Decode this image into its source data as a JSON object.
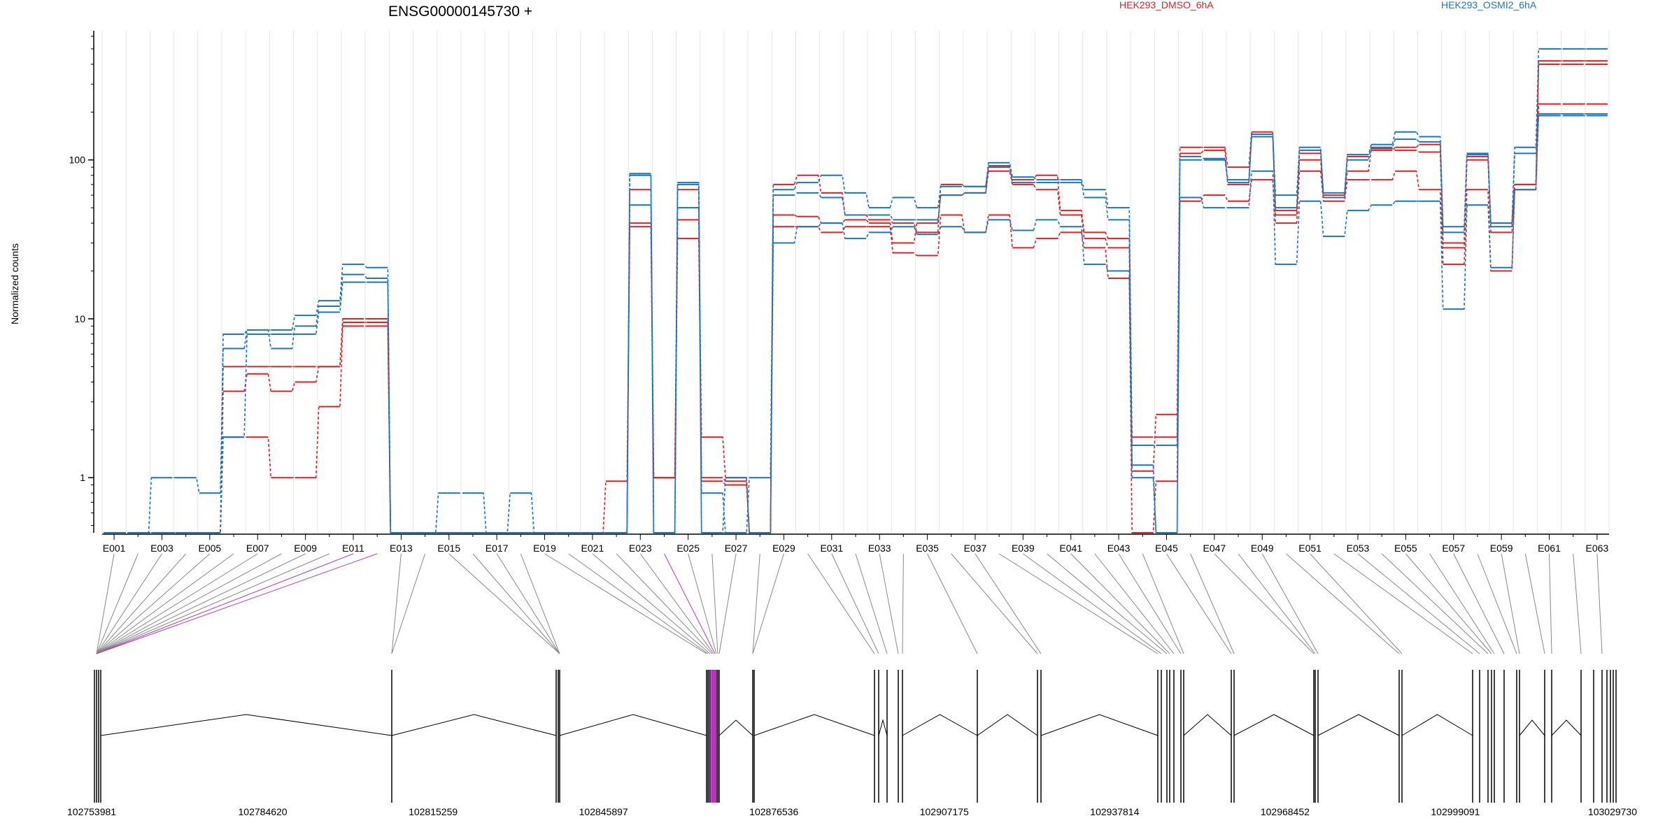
{
  "chart_data": {
    "type": "line",
    "title": "ENSG00000145730 +",
    "ylabel": "Normalized counts",
    "xlabel": "",
    "y_scale": "log",
    "ylim": [
      0.45,
      650
    ],
    "y_ticks": [
      {
        "value": 1,
        "label": "1"
      },
      {
        "value": 10,
        "label": "10"
      },
      {
        "value": 100,
        "label": "100"
      }
    ],
    "grid": true,
    "legend_placement": "top",
    "exon_tick_labels": [
      "E001",
      "E003",
      "E005",
      "E007",
      "E009",
      "E011",
      "E013",
      "E015",
      "E017",
      "E019",
      "E021",
      "E023",
      "E025",
      "E027",
      "E029",
      "E031",
      "E033",
      "E035",
      "E037",
      "E039",
      "E041",
      "E043",
      "E045",
      "E047",
      "E049",
      "E051",
      "E053",
      "E055",
      "E057",
      "E059",
      "E061",
      "E063"
    ],
    "genomic_tick_labels": [
      "102753981",
      "102784620",
      "102815259",
      "102845897",
      "102876536",
      "102907175",
      "102937814",
      "102968452",
      "102999091",
      "103029730"
    ],
    "series": [
      {
        "name": "HEK293_DMSO_6hA",
        "color": "#d62728",
        "values": [
          0.45,
          0.45,
          0.45,
          0.45,
          0.45,
          5,
          5,
          5,
          5,
          5,
          9.5,
          9.5,
          0.45,
          0.45,
          0.45,
          0.45,
          0.45,
          0.45,
          0.45,
          0.45,
          0.45,
          0.95,
          40,
          1,
          42,
          1.8,
          1,
          0.45,
          70,
          80,
          62,
          45,
          42,
          40,
          35,
          70,
          68,
          90,
          75,
          80,
          48,
          35,
          32,
          1.8,
          1.8,
          120,
          120,
          90,
          150,
          48,
          110,
          60,
          105,
          118,
          115,
          112,
          30,
          105,
          40,
          70,
          420,
          420,
          420
        ]
      },
      {
        "name": "",
        "color": "#d62728",
        "values": [
          0.45,
          0.45,
          0.45,
          0.45,
          0.45,
          3.5,
          4.5,
          3.5,
          4,
          5,
          10,
          10,
          0.45,
          0.45,
          0.45,
          0.45,
          0.45,
          0.45,
          0.45,
          0.45,
          0.45,
          0.45,
          65,
          1,
          65,
          1,
          0.95,
          0.45,
          45,
          44,
          40,
          42,
          40,
          30,
          40,
          60,
          62,
          85,
          70,
          65,
          45,
          32,
          28,
          1.1,
          2.5,
          110,
          115,
          70,
          140,
          45,
          100,
          58,
          85,
          115,
          120,
          125,
          28,
          100,
          35,
          65,
          400,
          400,
          400
        ]
      },
      {
        "name": "",
        "color": "#d62728",
        "values": [
          0.45,
          0.45,
          0.45,
          0.45,
          0.45,
          1.8,
          1.8,
          1,
          1,
          2.8,
          9,
          9,
          0.45,
          0.45,
          0.45,
          0.45,
          0.45,
          0.45,
          0.45,
          0.45,
          0.45,
          0.45,
          38,
          1,
          32,
          0.95,
          0.9,
          0.45,
          38,
          38,
          35,
          38,
          38,
          26,
          25,
          45,
          35,
          45,
          28,
          32,
          35,
          28,
          18,
          0.45,
          0.95,
          55,
          60,
          55,
          75,
          40,
          85,
          55,
          75,
          75,
          85,
          65,
          22,
          65,
          20,
          70,
          225,
          225,
          225
        ]
      },
      {
        "name": "HEK293_OSMI2_6hA",
        "color": "#1f77b4",
        "values": [
          0.45,
          0.45,
          0.45,
          0.45,
          0.45,
          8,
          8.5,
          8.5,
          10.5,
          13,
          22,
          21,
          0.45,
          0.45,
          0.45,
          0.45,
          0.45,
          0.45,
          0.45,
          0.45,
          0.45,
          0.45,
          82,
          0.45,
          72,
          0.8,
          0.45,
          0.45,
          65,
          72,
          80,
          62,
          50,
          58,
          50,
          68,
          68,
          96,
          78,
          75,
          75,
          65,
          50,
          1.6,
          1.6,
          105,
          102,
          75,
          145,
          60,
          120,
          62,
          108,
          125,
          150,
          140,
          38,
          110,
          40,
          120,
          500,
          500,
          500
        ]
      },
      {
        "name": "",
        "color": "#1f77b4",
        "values": [
          0.45,
          0.45,
          1,
          1,
          0.8,
          6.5,
          8.5,
          6.5,
          9,
          12,
          19,
          18,
          0.45,
          0.45,
          0.8,
          0.8,
          0.45,
          0.8,
          0.45,
          0.45,
          0.45,
          0.45,
          80,
          0.45,
          70,
          0.45,
          0.45,
          1,
          60,
          62,
          58,
          45,
          45,
          42,
          42,
          60,
          62,
          92,
          72,
          72,
          72,
          58,
          42,
          1.2,
          0.45,
          100,
          100,
          72,
          140,
          50,
          115,
          58,
          100,
          120,
          135,
          130,
          35,
          108,
          38,
          110,
          190,
          190,
          190
        ]
      },
      {
        "name": "",
        "color": "#1f77b4",
        "values": [
          0.45,
          0.45,
          0.45,
          0.45,
          0.45,
          1.8,
          8,
          8,
          8,
          11,
          17,
          17,
          0.45,
          0.45,
          0.45,
          0.45,
          0.45,
          0.45,
          0.45,
          0.45,
          0.45,
          0.45,
          52,
          0.45,
          50,
          0.45,
          1,
          0.45,
          30,
          38,
          40,
          32,
          35,
          38,
          34,
          38,
          35,
          42,
          36,
          42,
          38,
          22,
          20,
          1,
          0.45,
          58,
          50,
          50,
          85,
          22,
          55,
          33,
          48,
          52,
          55,
          55,
          11.5,
          52,
          21,
          65,
          195,
          195,
          195
        ]
      }
    ]
  }
}
